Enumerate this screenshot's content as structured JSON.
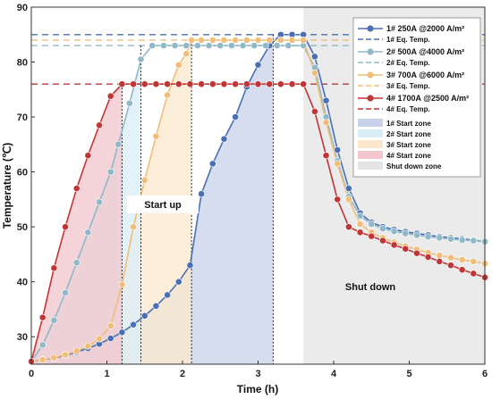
{
  "chart_data": {
    "type": "line",
    "title": "",
    "xlabel": "Time (h)",
    "ylabel": "Temperature (℃)",
    "xlim": [
      0,
      6
    ],
    "ylim": [
      25,
      90
    ],
    "xticks": [
      "0",
      "1",
      "2",
      "3",
      "4",
      "5",
      "6"
    ],
    "yticks": [
      "30",
      "40",
      "50",
      "60",
      "70",
      "80",
      "90"
    ],
    "shutdown_start": 3.6,
    "series": [
      {
        "label": "1# 250A @2000 A/m²",
        "eq_label": "1#  Eq. Temp.",
        "zone_label": "1#  Start zone",
        "color": "#4a6fb3",
        "fill": "#c7d2ea",
        "eq_temp": 85,
        "zone_end": 3.2,
        "points": [
          [
            0,
            25.5
          ],
          [
            0.15,
            25.8
          ],
          [
            0.3,
            26.1
          ],
          [
            0.45,
            26.6
          ],
          [
            0.6,
            27.2
          ],
          [
            0.75,
            27.9
          ],
          [
            0.9,
            28.7
          ],
          [
            1.05,
            29.7
          ],
          [
            1.2,
            30.8
          ],
          [
            1.35,
            32.2
          ],
          [
            1.5,
            33.8
          ],
          [
            1.65,
            35.6
          ],
          [
            1.8,
            37.6
          ],
          [
            1.95,
            40
          ],
          [
            2.1,
            43
          ],
          [
            2.25,
            56
          ],
          [
            2.4,
            61.5
          ],
          [
            2.55,
            66
          ],
          [
            2.7,
            70
          ],
          [
            2.85,
            75.5
          ],
          [
            3.0,
            79.5
          ],
          [
            3.15,
            83
          ],
          [
            3.3,
            85
          ],
          [
            3.45,
            85
          ],
          [
            3.6,
            85
          ],
          [
            3.75,
            81
          ],
          [
            3.9,
            73
          ],
          [
            4.05,
            64
          ],
          [
            4.2,
            57
          ],
          [
            4.35,
            52.5
          ],
          [
            4.5,
            50.8
          ],
          [
            4.65,
            50
          ],
          [
            4.8,
            49.5
          ],
          [
            4.95,
            49.1
          ],
          [
            5.1,
            48.8
          ],
          [
            5.25,
            48.5
          ],
          [
            5.4,
            48.2
          ],
          [
            5.55,
            48
          ],
          [
            5.7,
            47.8
          ],
          [
            5.85,
            47.6
          ],
          [
            6.0,
            47.3
          ]
        ]
      },
      {
        "label": "2# 500A @4000 A/m²",
        "eq_label": "2#  Eq. Temp.",
        "zone_label": "2#  Start zone",
        "color": "#8fb8c8",
        "fill": "#d9edf5",
        "eq_temp": 83,
        "zone_end": 1.45,
        "points": [
          [
            0,
            25.5
          ],
          [
            0.15,
            28.5
          ],
          [
            0.3,
            33
          ],
          [
            0.45,
            38
          ],
          [
            0.6,
            43.5
          ],
          [
            0.75,
            49
          ],
          [
            0.9,
            54.5
          ],
          [
            1.05,
            60
          ],
          [
            1.15,
            65
          ],
          [
            1.3,
            72.5
          ],
          [
            1.45,
            80.5
          ],
          [
            1.6,
            83
          ],
          [
            1.75,
            83
          ],
          [
            1.9,
            83
          ],
          [
            2.05,
            83
          ],
          [
            2.2,
            83
          ],
          [
            2.35,
            83
          ],
          [
            2.5,
            83
          ],
          [
            2.65,
            83
          ],
          [
            2.8,
            83
          ],
          [
            2.95,
            83
          ],
          [
            3.1,
            83
          ],
          [
            3.25,
            83
          ],
          [
            3.4,
            83
          ],
          [
            3.6,
            83
          ],
          [
            3.75,
            79
          ],
          [
            3.9,
            70
          ],
          [
            4.05,
            62
          ],
          [
            4.2,
            55.5
          ],
          [
            4.35,
            52
          ],
          [
            4.5,
            50.5
          ],
          [
            4.65,
            49.7
          ],
          [
            4.8,
            49.2
          ],
          [
            4.95,
            48.8
          ],
          [
            5.1,
            48.5
          ],
          [
            5.25,
            48.2
          ],
          [
            5.4,
            48
          ],
          [
            5.55,
            47.8
          ],
          [
            5.7,
            47.6
          ],
          [
            5.85,
            47.5
          ],
          [
            6.0,
            47.3
          ]
        ]
      },
      {
        "label": "3# 700A @6000 A/m²",
        "eq_label": "3#  Eq. Temp.",
        "zone_label": "3#  Start zone",
        "color": "#f0be78",
        "fill": "#fbe8cc",
        "eq_temp": 84,
        "zone_end": 2.12,
        "points": [
          [
            0,
            25.5
          ],
          [
            0.15,
            25.8
          ],
          [
            0.3,
            26.2
          ],
          [
            0.45,
            26.7
          ],
          [
            0.6,
            27.4
          ],
          [
            0.75,
            28.3
          ],
          [
            0.9,
            29.6
          ],
          [
            1.05,
            32
          ],
          [
            1.2,
            39.5
          ],
          [
            1.35,
            50
          ],
          [
            1.5,
            58.5
          ],
          [
            1.65,
            66.5
          ],
          [
            1.8,
            74
          ],
          [
            1.95,
            79.5
          ],
          [
            2.05,
            81.5
          ],
          [
            2.12,
            84
          ],
          [
            2.25,
            84
          ],
          [
            2.4,
            84
          ],
          [
            2.55,
            84
          ],
          [
            2.7,
            84
          ],
          [
            2.85,
            84
          ],
          [
            3.0,
            84
          ],
          [
            3.15,
            84
          ],
          [
            3.3,
            84
          ],
          [
            3.45,
            84
          ],
          [
            3.6,
            84
          ],
          [
            3.75,
            78
          ],
          [
            3.9,
            69
          ],
          [
            4.05,
            61.5
          ],
          [
            4.2,
            55
          ],
          [
            4.35,
            50.5
          ],
          [
            4.5,
            49
          ],
          [
            4.65,
            48
          ],
          [
            4.8,
            47.2
          ],
          [
            4.95,
            46.5
          ],
          [
            5.1,
            45.9
          ],
          [
            5.25,
            45.3
          ],
          [
            5.4,
            44.8
          ],
          [
            5.55,
            44.4
          ],
          [
            5.7,
            44
          ],
          [
            5.85,
            43.7
          ],
          [
            6.0,
            43.3
          ]
        ]
      },
      {
        "label": "4# 1700A @2500 A/m²",
        "eq_label": "4#  Eq. Temp.",
        "zone_label": "4#  Start zone",
        "color": "#c03636",
        "fill": "#f2c6cc",
        "eq_temp": 76,
        "zone_end": 1.2,
        "points": [
          [
            0,
            25.5
          ],
          [
            0.15,
            33.5
          ],
          [
            0.3,
            42.5
          ],
          [
            0.45,
            50
          ],
          [
            0.6,
            57
          ],
          [
            0.75,
            63
          ],
          [
            0.9,
            68.5
          ],
          [
            1.05,
            73.8
          ],
          [
            1.2,
            76
          ],
          [
            1.35,
            76
          ],
          [
            1.5,
            76
          ],
          [
            1.65,
            76
          ],
          [
            1.8,
            76
          ],
          [
            1.95,
            76
          ],
          [
            2.1,
            76
          ],
          [
            2.25,
            76
          ],
          [
            2.4,
            76
          ],
          [
            2.55,
            76
          ],
          [
            2.7,
            76
          ],
          [
            2.85,
            76
          ],
          [
            3.0,
            76
          ],
          [
            3.15,
            76
          ],
          [
            3.3,
            76
          ],
          [
            3.45,
            76
          ],
          [
            3.6,
            76
          ],
          [
            3.75,
            71
          ],
          [
            3.9,
            63
          ],
          [
            4.05,
            55
          ],
          [
            4.2,
            50
          ],
          [
            4.35,
            49
          ],
          [
            4.5,
            48.3
          ],
          [
            4.65,
            47.5
          ],
          [
            4.8,
            46.7
          ],
          [
            4.95,
            46
          ],
          [
            5.1,
            45.2
          ],
          [
            5.25,
            44.5
          ],
          [
            5.4,
            43.7
          ],
          [
            5.55,
            43
          ],
          [
            5.7,
            42.2
          ],
          [
            5.85,
            41.5
          ],
          [
            6.0,
            40.8
          ]
        ]
      }
    ],
    "legend_shutdown": "Shut down zone",
    "annotations": {
      "startup": "Start up",
      "shutdown": "Shut down"
    },
    "legend_position": "top-right"
  }
}
